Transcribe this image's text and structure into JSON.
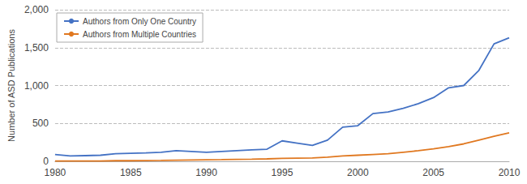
{
  "chart_data": {
    "type": "line",
    "ylabel": "Number of ASD Publications",
    "x": [
      1980,
      1981,
      1982,
      1983,
      1984,
      1985,
      1986,
      1987,
      1988,
      1989,
      1990,
      1991,
      1992,
      1993,
      1994,
      1995,
      1996,
      1997,
      1998,
      1999,
      2000,
      2001,
      2002,
      2003,
      2004,
      2005,
      2006,
      2007,
      2008,
      2009,
      2010
    ],
    "series": [
      {
        "name": "Authors from Only One Country",
        "color": "#4472C4",
        "values": [
          90,
          70,
          75,
          80,
          100,
          105,
          110,
          120,
          140,
          130,
          120,
          130,
          140,
          150,
          160,
          270,
          240,
          210,
          280,
          450,
          470,
          630,
          650,
          700,
          760,
          840,
          970,
          1000,
          1200,
          1550,
          1630
        ]
      },
      {
        "name": "Authors from Multiple Countries",
        "color": "#E07820",
        "values": [
          5,
          5,
          5,
          5,
          8,
          8,
          10,
          12,
          15,
          18,
          20,
          22,
          25,
          28,
          32,
          38,
          42,
          45,
          55,
          70,
          80,
          90,
          100,
          120,
          140,
          165,
          195,
          230,
          280,
          330,
          375
        ]
      }
    ],
    "xlim": [
      1980,
      2010
    ],
    "xticks": [
      1980,
      1985,
      1990,
      1995,
      2000,
      2005,
      2010
    ],
    "ylim": [
      0,
      2000
    ],
    "yticks": [
      0,
      500,
      {
        "value": 1000,
        "label": "1,000"
      },
      {
        "value": 1500,
        "label": "1,500"
      },
      {
        "value": 2000,
        "label": "2,000"
      }
    ],
    "grid": "y",
    "legend": "upper left"
  }
}
